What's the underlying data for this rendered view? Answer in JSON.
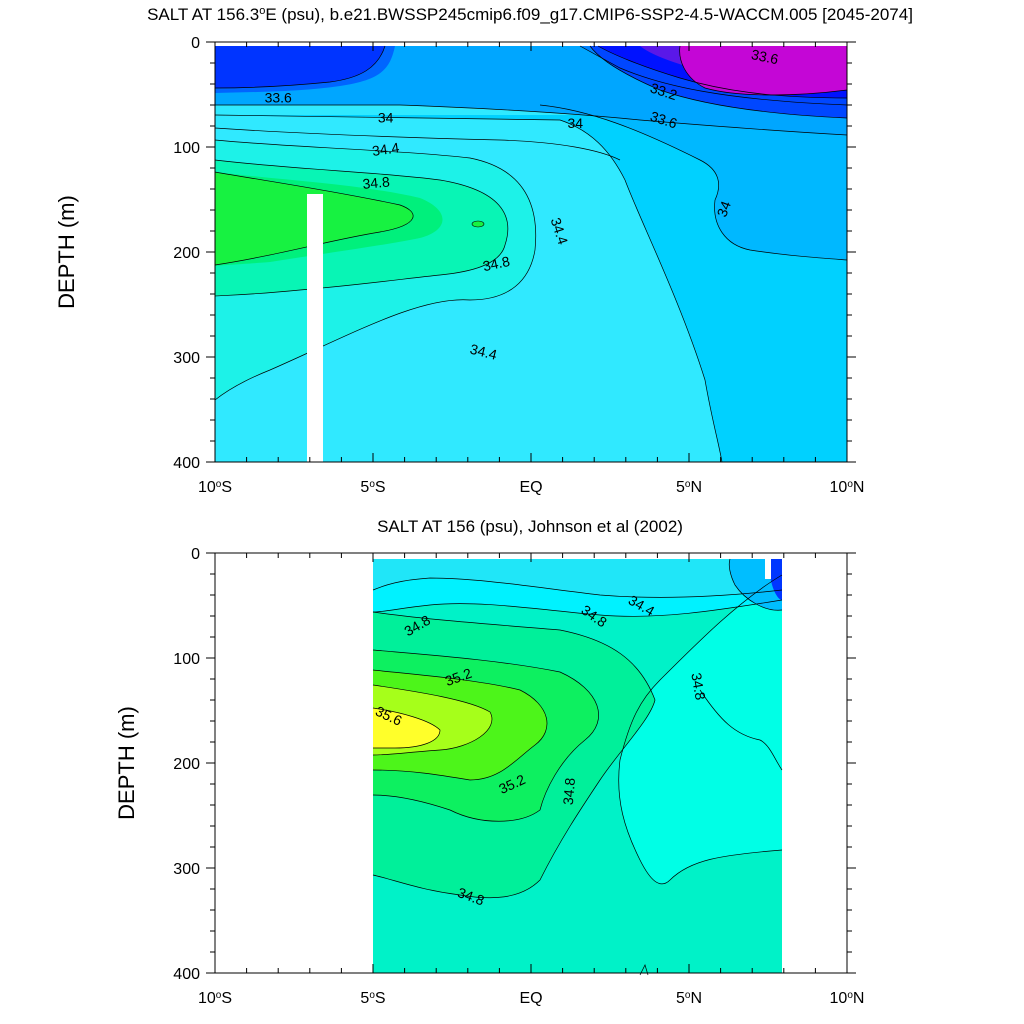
{
  "chart_data": [
    {
      "type": "contour",
      "title": "SALT AT 156.3°E (psu), b.e21.BWSSP245cmip6.f09_g17.CMIP6-SSP2-4.5-WACCM.005 [2045-2074]",
      "title_parts": [
        "SALT AT 156.3",
        "o",
        "E (psu), b.e21.BWSSP245cmip6.f09_g17.CMIP6-SSP2-4.5-WACCM.005 [2045-2074]"
      ],
      "xlabel": "",
      "ylabel": "DEPTH (m)",
      "x_ticks": [
        {
          "value": -10,
          "deg": "10",
          "hemi": "S"
        },
        {
          "value": -5,
          "deg": "5",
          "hemi": "S"
        },
        {
          "value": 0,
          "deg": "",
          "hemi": "EQ"
        },
        {
          "value": 5,
          "deg": "5",
          "hemi": "N"
        },
        {
          "value": 10,
          "deg": "10",
          "hemi": "N"
        }
      ],
      "y_ticks": [
        0,
        100,
        200,
        300,
        400
      ],
      "xlim": [
        -10,
        10
      ],
      "ylim": [
        400,
        0
      ],
      "data_extent": {
        "lat": [
          -10,
          10
        ],
        "depth": [
          5,
          400
        ]
      },
      "missing_data_column": {
        "lat": [
          -7.1,
          -6.6
        ],
        "depth": [
          145,
          400
        ]
      },
      "contour_levels": [
        32.6,
        32.8,
        33.0,
        33.2,
        33.4,
        33.6,
        33.8,
        34.0,
        34.2,
        34.4,
        34.6,
        34.8,
        35.0
      ],
      "contour_labels": [
        {
          "text": "33.6",
          "lat": 7.4,
          "depth": 14,
          "rot": 12
        },
        {
          "text": "33.6",
          "lat": -8.0,
          "depth": 53,
          "rot": 0
        },
        {
          "text": "33.2",
          "lat": 4.2,
          "depth": 47,
          "rot": 18
        },
        {
          "text": "33.6",
          "lat": 4.2,
          "depth": 74,
          "rot": 18
        },
        {
          "text": "34",
          "lat": -4.6,
          "depth": 72,
          "rot": 0
        },
        {
          "text": "34",
          "lat": 1.4,
          "depth": 77,
          "rot": 0
        },
        {
          "text": "34.4",
          "lat": -4.6,
          "depth": 102,
          "rot": -8
        },
        {
          "text": "34.8",
          "lat": -4.9,
          "depth": 134,
          "rot": -5
        },
        {
          "text": "34.4",
          "lat": 0.9,
          "depth": 180,
          "rot": 72
        },
        {
          "text": "34",
          "lat": 6.1,
          "depth": 159,
          "rot": -70
        },
        {
          "text": "34.8",
          "lat": -1.1,
          "depth": 211,
          "rot": -12
        },
        {
          "text": "34.4",
          "lat": -1.5,
          "depth": 295,
          "rot": 14
        }
      ]
    },
    {
      "type": "contour",
      "title": "SALT AT 156 (psu), Johnson et al (2002)",
      "xlabel": "",
      "ylabel": "DEPTH (m)",
      "x_ticks": [
        {
          "value": -10,
          "deg": "10",
          "hemi": "S"
        },
        {
          "value": -5,
          "deg": "5",
          "hemi": "S"
        },
        {
          "value": 0,
          "deg": "",
          "hemi": "EQ"
        },
        {
          "value": 5,
          "deg": "5",
          "hemi": "N"
        },
        {
          "value": 10,
          "deg": "10",
          "hemi": "N"
        }
      ],
      "y_ticks": [
        0,
        100,
        200,
        300,
        400
      ],
      "xlim": [
        -10,
        10
      ],
      "ylim": [
        400,
        0
      ],
      "data_extent": {
        "lat": [
          -5,
          8
        ],
        "depth": [
          5,
          400
        ]
      },
      "contour_levels": [
        34.0,
        34.2,
        34.4,
        34.6,
        34.8,
        35.0,
        35.2,
        35.4,
        35.6
      ],
      "contour_labels": [
        {
          "text": "34.8",
          "lat": -3.6,
          "depth": 69,
          "rot": -30
        },
        {
          "text": "34.8",
          "lat": 2.0,
          "depth": 60,
          "rot": 35
        },
        {
          "text": "34.4",
          "lat": 3.5,
          "depth": 50,
          "rot": 30
        },
        {
          "text": "35.2",
          "lat": -2.3,
          "depth": 118,
          "rot": -20
        },
        {
          "text": "35.6",
          "lat": -4.5,
          "depth": 155,
          "rot": 25
        },
        {
          "text": "34.8",
          "lat": 5.3,
          "depth": 127,
          "rot": 80
        },
        {
          "text": "35.2",
          "lat": -0.6,
          "depth": 220,
          "rot": -25
        },
        {
          "text": "34.8",
          "lat": 1.2,
          "depth": 227,
          "rot": -85
        },
        {
          "text": "34.8",
          "lat": -1.9,
          "depth": 327,
          "rot": 20
        }
      ]
    }
  ]
}
